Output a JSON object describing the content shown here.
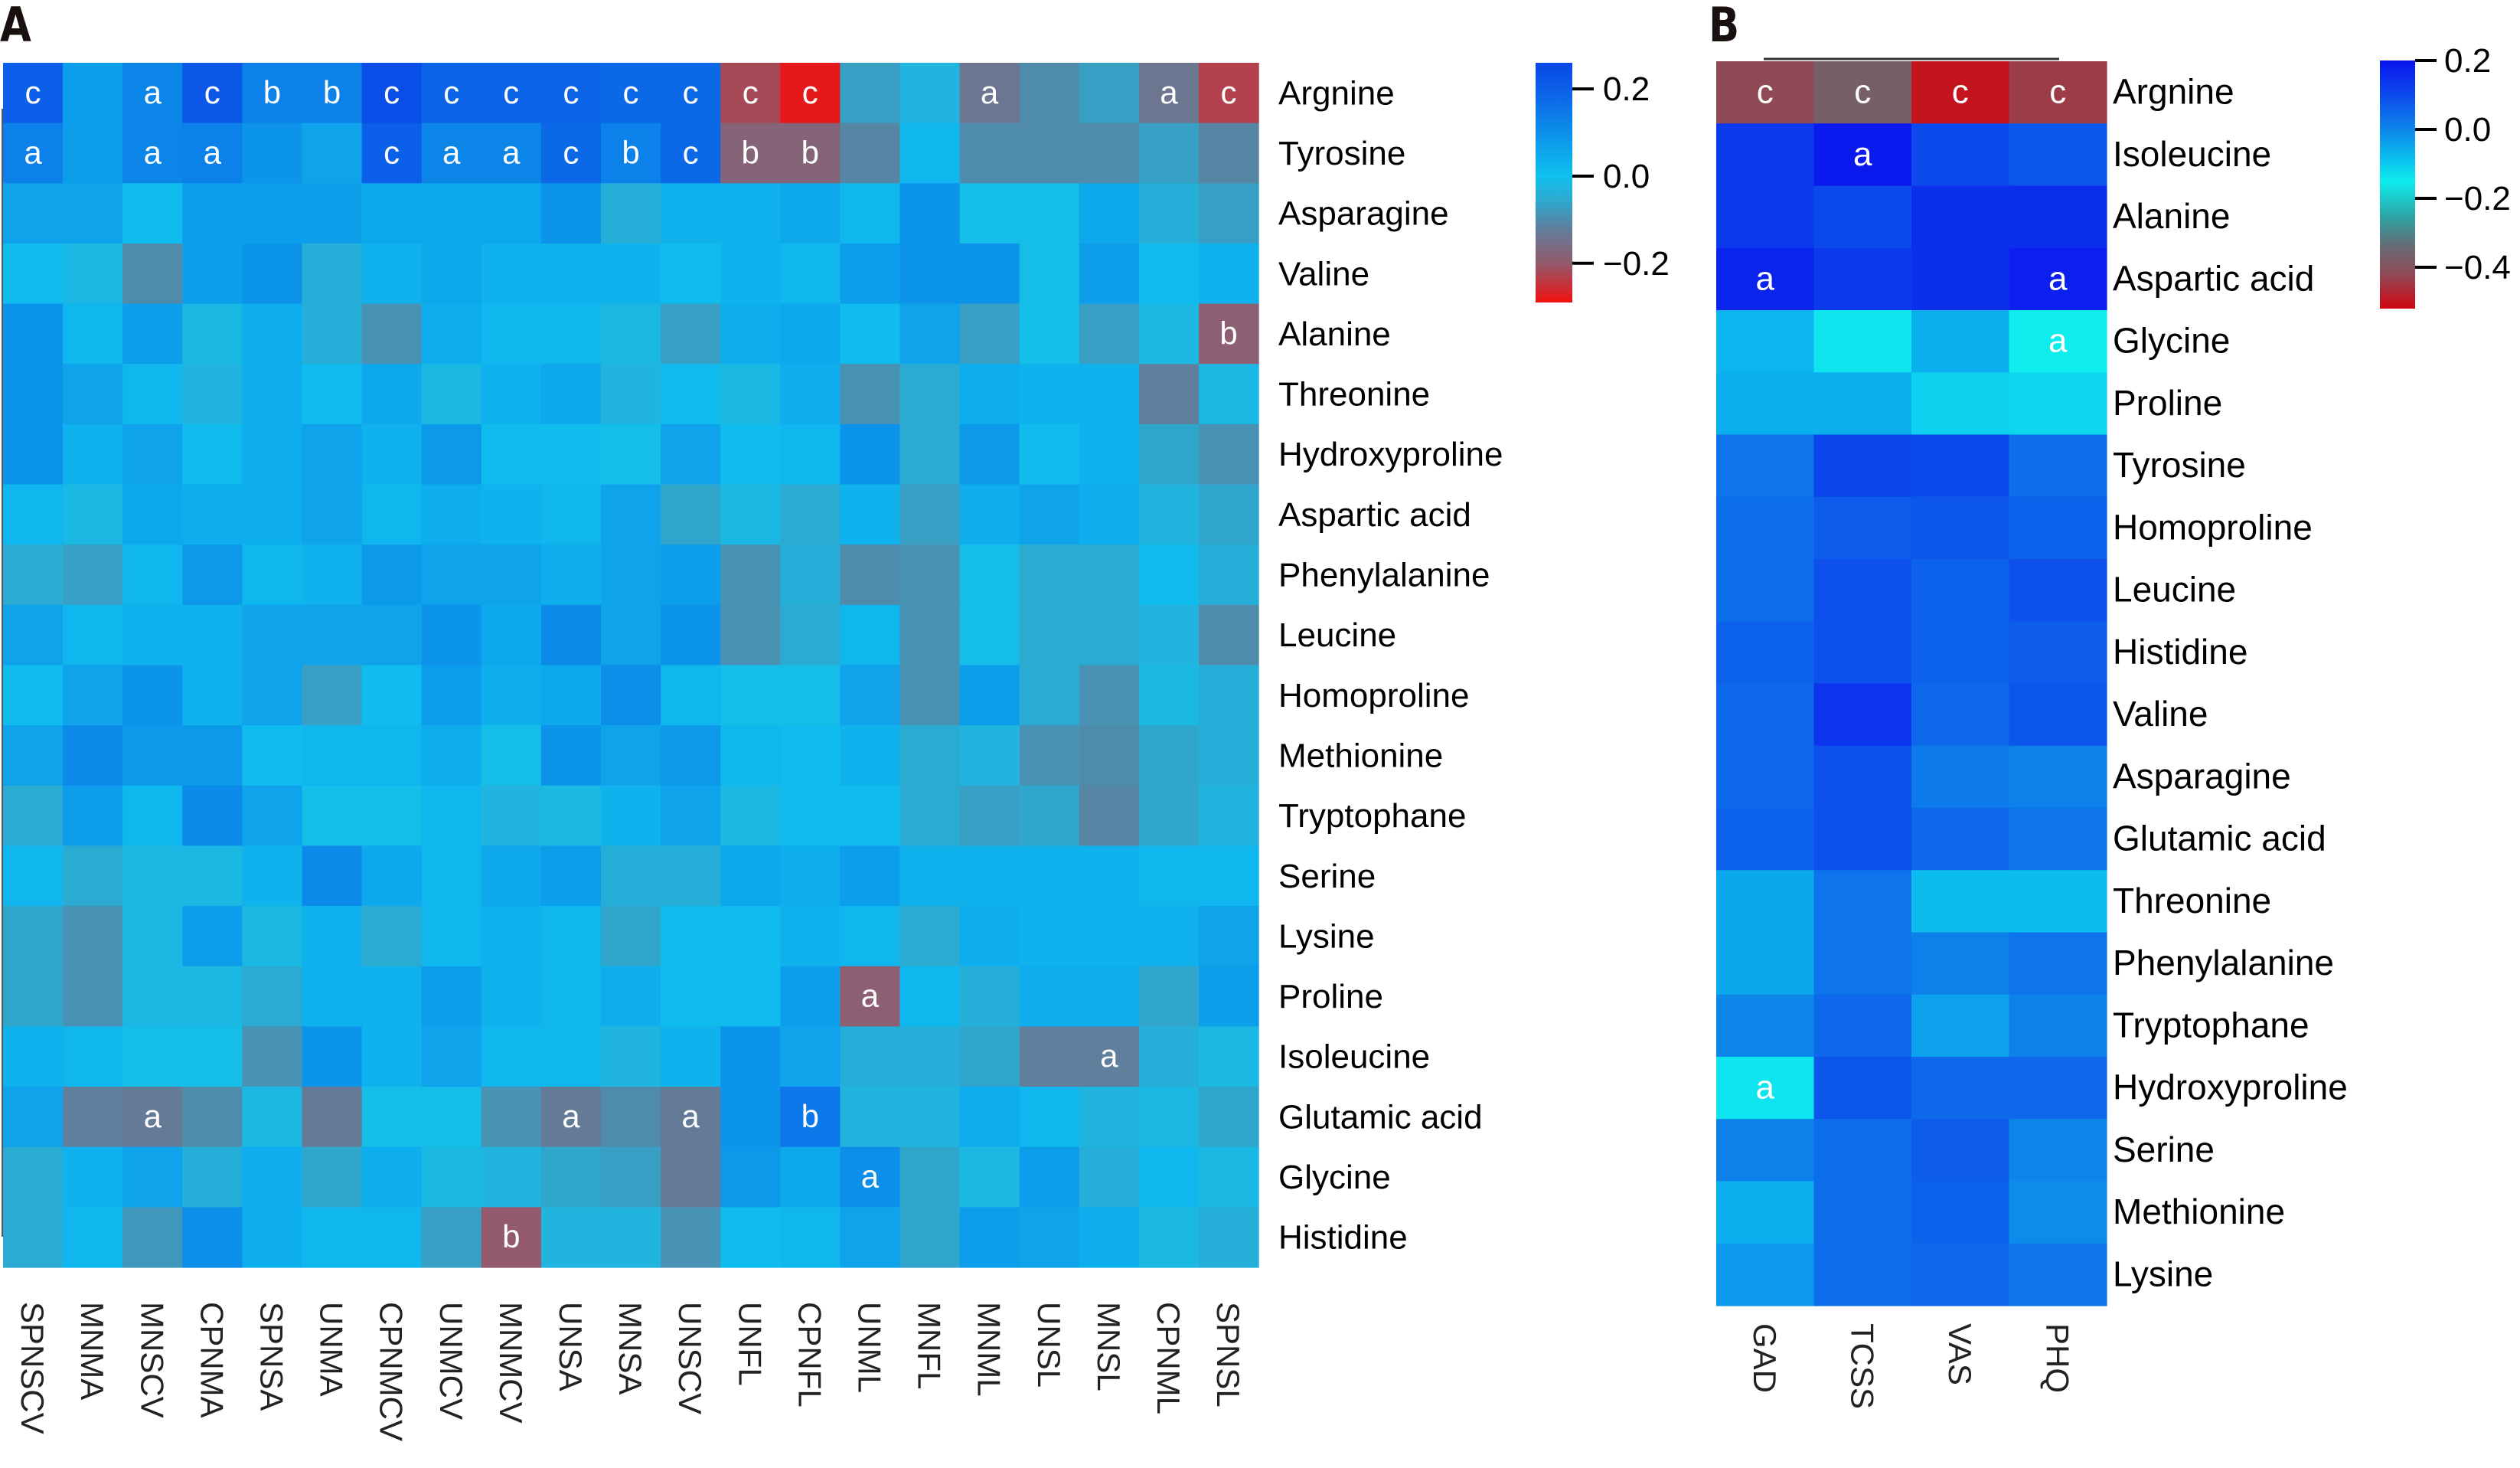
{
  "figure": {
    "panel_a_label": "A",
    "panel_b_label": "B"
  },
  "chart_data": [
    {
      "type": "heatmap",
      "panel": "A",
      "title": "",
      "xlabel": "",
      "ylabel": "",
      "columns": [
        "SPNSCV",
        "MNMA",
        "MNSCV",
        "CPNMA",
        "SPNSA",
        "UNMA",
        "CPNMCV",
        "UNMCV",
        "MNMCV",
        "UNSA",
        "MNSA",
        "UNSCV",
        "UNFL",
        "CPNFL",
        "UNML",
        "MNFL",
        "MNML",
        "UNSL",
        "MNSL",
        "CPNML",
        "SPNSL"
      ],
      "rows": [
        "Argnine",
        "Tyrosine",
        "Asparagine",
        "Valine",
        "Alanine",
        "Threonine",
        "Hydroxyproline",
        "Aspartic acid",
        "Phenylalanine",
        "Leucine",
        "Homoproline",
        "Methionine",
        "Tryptophane",
        "Serine",
        "Lysine",
        "Proline",
        "Isoleucine",
        "Glutamic acid",
        "Glycine",
        "Histidine"
      ],
      "values": [
        [
          0.2,
          0.07,
          0.12,
          0.22,
          0.13,
          0.13,
          0.24,
          0.19,
          0.19,
          0.19,
          0.18,
          0.18,
          -0.22,
          -0.28,
          -0.07,
          -0.03,
          -0.14,
          -0.1,
          -0.07,
          -0.14,
          -0.23
        ],
        [
          0.13,
          0.07,
          0.12,
          0.13,
          0.09,
          0.06,
          0.2,
          0.12,
          0.12,
          0.18,
          0.13,
          0.18,
          -0.18,
          -0.18,
          -0.11,
          0.02,
          -0.1,
          -0.1,
          -0.1,
          -0.07,
          -0.11
        ],
        [
          0.06,
          0.06,
          0.01,
          0.07,
          0.07,
          0.07,
          0.05,
          0.05,
          0.05,
          0.09,
          -0.04,
          0.03,
          0.03,
          0.05,
          0.02,
          0.09,
          -0.01,
          -0.01,
          0.05,
          -0.04,
          -0.07
        ],
        [
          0.01,
          -0.02,
          -0.1,
          0.07,
          0.09,
          -0.04,
          0.03,
          0.05,
          0.03,
          0.03,
          0.03,
          0.01,
          0.03,
          0.02,
          0.07,
          0.09,
          0.09,
          -0.01,
          0.07,
          0.01,
          0.03
        ],
        [
          0.09,
          0.02,
          0.07,
          -0.02,
          0.04,
          -0.04,
          -0.09,
          0.04,
          0.02,
          0.02,
          -0.02,
          -0.07,
          0.04,
          0.05,
          0.01,
          0.06,
          -0.07,
          -0.01,
          -0.07,
          -0.02,
          -0.19
        ],
        [
          0.09,
          0.06,
          0.02,
          -0.03,
          0.04,
          0.01,
          0.05,
          -0.02,
          0.03,
          0.05,
          -0.03,
          0.01,
          -0.02,
          0.04,
          -0.09,
          -0.05,
          0.04,
          0.03,
          0.03,
          -0.12,
          -0.02
        ],
        [
          0.09,
          0.03,
          0.06,
          0.01,
          0.04,
          0.06,
          0.03,
          0.08,
          0.01,
          0.01,
          -0.01,
          0.06,
          0.01,
          0.02,
          0.09,
          -0.05,
          0.08,
          0.01,
          0.03,
          -0.06,
          -0.09
        ],
        [
          0.02,
          -0.02,
          0.05,
          0.04,
          0.04,
          0.06,
          0.02,
          0.04,
          0.03,
          0.02,
          0.06,
          -0.06,
          -0.02,
          -0.05,
          0.03,
          -0.07,
          0.04,
          0.06,
          0.04,
          -0.03,
          -0.06
        ],
        [
          -0.05,
          -0.07,
          0.02,
          0.08,
          0.02,
          0.03,
          0.08,
          0.06,
          0.06,
          0.04,
          0.06,
          0.07,
          -0.09,
          -0.04,
          -0.1,
          -0.09,
          -0.01,
          -0.05,
          -0.05,
          0.01,
          -0.04
        ],
        [
          0.06,
          0.02,
          0.03,
          0.03,
          0.06,
          0.06,
          0.06,
          0.09,
          0.05,
          0.11,
          0.06,
          0.09,
          -0.09,
          -0.05,
          0.02,
          -0.09,
          -0.01,
          -0.05,
          -0.05,
          -0.03,
          -0.1
        ],
        [
          0.01,
          0.06,
          0.09,
          0.03,
          0.06,
          -0.07,
          0.01,
          0.07,
          0.04,
          0.05,
          0.1,
          0.02,
          -0.01,
          -0.01,
          0.06,
          -0.09,
          0.07,
          -0.05,
          -0.09,
          -0.02,
          -0.04
        ],
        [
          0.06,
          0.11,
          0.08,
          0.08,
          0.01,
          0.02,
          0.02,
          0.04,
          -0.01,
          0.09,
          0.06,
          0.08,
          0.02,
          0.01,
          0.03,
          -0.05,
          -0.03,
          -0.09,
          -0.1,
          -0.06,
          -0.04
        ],
        [
          -0.05,
          0.07,
          0.02,
          0.11,
          0.06,
          -0.01,
          -0.01,
          0.02,
          -0.03,
          -0.02,
          0.03,
          0.06,
          -0.02,
          0.01,
          0.01,
          -0.05,
          -0.07,
          -0.06,
          -0.11,
          -0.06,
          -0.03
        ],
        [
          0.02,
          -0.05,
          -0.02,
          -0.02,
          0.03,
          0.11,
          0.05,
          0.02,
          0.05,
          0.07,
          -0.04,
          -0.04,
          0.05,
          0.04,
          0.07,
          0.03,
          0.03,
          0.03,
          0.03,
          0.02,
          0.02
        ],
        [
          -0.06,
          -0.09,
          -0.02,
          0.07,
          -0.02,
          0.03,
          -0.05,
          0.02,
          0.03,
          0.02,
          -0.06,
          0.01,
          0.01,
          0.03,
          0.02,
          -0.05,
          0.04,
          0.03,
          0.03,
          0.03,
          0.06
        ],
        [
          -0.06,
          -0.09,
          -0.02,
          -0.02,
          -0.05,
          0.03,
          0.03,
          0.07,
          0.03,
          0.02,
          0.04,
          0.01,
          0.01,
          0.07,
          -0.19,
          0.02,
          -0.04,
          0.04,
          0.04,
          -0.06,
          0.07
        ],
        [
          0.03,
          0.02,
          -0.01,
          -0.01,
          -0.09,
          0.09,
          0.03,
          0.06,
          0.02,
          0.02,
          -0.03,
          0.03,
          0.09,
          0.06,
          -0.04,
          -0.04,
          -0.06,
          -0.12,
          -0.12,
          -0.04,
          -0.02
        ],
        [
          0.06,
          -0.12,
          -0.13,
          -0.1,
          -0.02,
          -0.13,
          -0.01,
          -0.01,
          -0.09,
          -0.13,
          -0.1,
          -0.13,
          0.09,
          0.15,
          -0.03,
          -0.03,
          0.04,
          0.02,
          -0.03,
          -0.02,
          -0.06
        ],
        [
          -0.05,
          0.03,
          0.06,
          -0.04,
          0.04,
          -0.06,
          0.04,
          -0.02,
          -0.03,
          -0.06,
          -0.07,
          -0.13,
          0.08,
          0.05,
          0.1,
          -0.06,
          -0.02,
          0.07,
          -0.04,
          0.02,
          -0.02
        ],
        [
          -0.05,
          0.02,
          -0.08,
          0.1,
          0.04,
          0.02,
          0.02,
          -0.07,
          -0.2,
          -0.03,
          -0.03,
          -0.09,
          0.01,
          0.02,
          0.06,
          -0.06,
          0.07,
          0.06,
          0.04,
          -0.02,
          -0.04
        ]
      ],
      "annotations": [
        {
          "row": "Argnine",
          "column": "SPNSCV",
          "text": "c"
        },
        {
          "row": "Argnine",
          "column": "MNSCV",
          "text": "a"
        },
        {
          "row": "Argnine",
          "column": "CPNMA",
          "text": "c"
        },
        {
          "row": "Argnine",
          "column": "SPNSA",
          "text": "b"
        },
        {
          "row": "Argnine",
          "column": "UNMA",
          "text": "b"
        },
        {
          "row": "Argnine",
          "column": "CPNMCV",
          "text": "c"
        },
        {
          "row": "Argnine",
          "column": "UNMCV",
          "text": "c"
        },
        {
          "row": "Argnine",
          "column": "MNMCV",
          "text": "c"
        },
        {
          "row": "Argnine",
          "column": "UNSA",
          "text": "c"
        },
        {
          "row": "Argnine",
          "column": "MNSA",
          "text": "c"
        },
        {
          "row": "Argnine",
          "column": "UNSCV",
          "text": "c"
        },
        {
          "row": "Argnine",
          "column": "UNFL",
          "text": "c"
        },
        {
          "row": "Argnine",
          "column": "CPNFL",
          "text": "c"
        },
        {
          "row": "Argnine",
          "column": "MNML",
          "text": "a"
        },
        {
          "row": "Argnine",
          "column": "CPNML",
          "text": "a"
        },
        {
          "row": "Argnine",
          "column": "SPNSL",
          "text": "c"
        },
        {
          "row": "Tyrosine",
          "column": "SPNSCV",
          "text": "a"
        },
        {
          "row": "Tyrosine",
          "column": "MNSCV",
          "text": "a"
        },
        {
          "row": "Tyrosine",
          "column": "CPNMA",
          "text": "a"
        },
        {
          "row": "Tyrosine",
          "column": "CPNMCV",
          "text": "c"
        },
        {
          "row": "Tyrosine",
          "column": "UNMCV",
          "text": "a"
        },
        {
          "row": "Tyrosine",
          "column": "MNMCV",
          "text": "a"
        },
        {
          "row": "Tyrosine",
          "column": "UNSA",
          "text": "c"
        },
        {
          "row": "Tyrosine",
          "column": "MNSA",
          "text": "b"
        },
        {
          "row": "Tyrosine",
          "column": "UNSCV",
          "text": "c"
        },
        {
          "row": "Tyrosine",
          "column": "UNFL",
          "text": "b"
        },
        {
          "row": "Tyrosine",
          "column": "CPNFL",
          "text": "b"
        },
        {
          "row": "Alanine",
          "column": "SPNSL",
          "text": "b"
        },
        {
          "row": "Proline",
          "column": "UNML",
          "text": "a"
        },
        {
          "row": "Isoleucine",
          "column": "MNSL",
          "text": "a"
        },
        {
          "row": "Glutamic acid",
          "column": "MNSCV",
          "text": "a"
        },
        {
          "row": "Glutamic acid",
          "column": "UNSA",
          "text": "a"
        },
        {
          "row": "Glutamic acid",
          "column": "UNSCV",
          "text": "a"
        },
        {
          "row": "Glutamic acid",
          "column": "CPNFL",
          "text": "b"
        },
        {
          "row": "Glycine",
          "column": "UNML",
          "text": "a"
        },
        {
          "row": "Histidine",
          "column": "MNMCV",
          "text": "b"
        }
      ],
      "colorbar": {
        "range": [
          -0.29,
          0.26
        ],
        "ticks": [
          0.2,
          0.0,
          -0.2
        ],
        "tick_labels": [
          "0.2",
          "0.0",
          "−0.2"
        ],
        "stops": [
          {
            "value": 0.26,
            "color": "#0a46e6"
          },
          {
            "value": 0.2,
            "color": "#0b5fe8"
          },
          {
            "value": 0.1,
            "color": "#0c8fe9"
          },
          {
            "value": 0.0,
            "color": "#10c1ef"
          },
          {
            "value": -0.06,
            "color": "#30a6cc"
          },
          {
            "value": -0.12,
            "color": "#5f7f9c"
          },
          {
            "value": -0.2,
            "color": "#925a6c"
          },
          {
            "value": -0.29,
            "color": "#f21010"
          }
        ],
        "legend_position": "right"
      }
    },
    {
      "type": "heatmap",
      "panel": "B",
      "title": "",
      "xlabel": "",
      "ylabel": "",
      "columns": [
        "GAD",
        "TCSS",
        "VAS",
        "PHQ"
      ],
      "rows": [
        "Argnine",
        "Isoleucine",
        "Alanine",
        "Aspartic acid",
        "Glycine",
        "Proline",
        "Tyrosine",
        "Homoproline",
        "Leucine",
        "Histidine",
        "Valine",
        "Asparagine",
        "Glutamic acid",
        "Threonine",
        "Phenylalanine",
        "Tryptophane",
        "Hydroxyproline",
        "Serine",
        "Methionine",
        "Lysine"
      ],
      "values": [
        [
          -0.42,
          -0.37,
          -0.5,
          -0.44
        ],
        [
          0.13,
          0.19,
          0.1,
          0.08
        ],
        [
          0.13,
          0.1,
          0.15,
          0.15
        ],
        [
          0.17,
          0.13,
          0.15,
          0.18
        ],
        [
          -0.07,
          -0.14,
          -0.06,
          -0.15
        ],
        [
          -0.06,
          -0.06,
          -0.11,
          -0.12
        ],
        [
          0.03,
          0.11,
          0.1,
          0.04
        ],
        [
          0.04,
          0.07,
          0.08,
          0.06
        ],
        [
          0.04,
          0.09,
          0.06,
          0.09
        ],
        [
          0.06,
          0.09,
          0.06,
          0.07
        ],
        [
          0.05,
          0.14,
          0.05,
          0.08
        ],
        [
          0.05,
          0.09,
          0.02,
          0.01
        ],
        [
          0.06,
          0.09,
          0.05,
          0.03
        ],
        [
          -0.05,
          0.03,
          -0.08,
          -0.08
        ],
        [
          -0.05,
          0.03,
          0.01,
          0.03
        ],
        [
          0.0,
          0.05,
          -0.04,
          0.01
        ],
        [
          -0.14,
          0.08,
          0.05,
          0.05
        ],
        [
          0.01,
          0.04,
          0.07,
          0.0
        ],
        [
          -0.06,
          0.04,
          0.06,
          -0.01
        ],
        [
          -0.03,
          0.04,
          0.05,
          0.03
        ]
      ],
      "annotations": [
        {
          "row": "Argnine",
          "column": "GAD",
          "text": "c"
        },
        {
          "row": "Argnine",
          "column": "TCSS",
          "text": "c"
        },
        {
          "row": "Argnine",
          "column": "VAS",
          "text": "c"
        },
        {
          "row": "Argnine",
          "column": "PHQ",
          "text": "c"
        },
        {
          "row": "Isoleucine",
          "column": "TCSS",
          "text": "a"
        },
        {
          "row": "Aspartic acid",
          "column": "GAD",
          "text": "a"
        },
        {
          "row": "Aspartic acid",
          "column": "PHQ",
          "text": "a"
        },
        {
          "row": "Glycine",
          "column": "PHQ",
          "text": "a"
        },
        {
          "row": "Hydroxyproline",
          "column": "GAD",
          "text": "a"
        }
      ],
      "colorbar": {
        "range": [
          -0.52,
          0.2
        ],
        "ticks": [
          0.2,
          0.0,
          -0.2,
          -0.4
        ],
        "tick_labels": [
          "0.2",
          "0.0",
          "−0.2",
          "−0.4"
        ],
        "stops": [
          {
            "value": 0.2,
            "color": "#0a14ee"
          },
          {
            "value": 0.1,
            "color": "#0d4aec"
          },
          {
            "value": 0.0,
            "color": "#0d86ea"
          },
          {
            "value": -0.08,
            "color": "#0cbcef"
          },
          {
            "value": -0.15,
            "color": "#0eecee"
          },
          {
            "value": -0.25,
            "color": "#2aa6a6"
          },
          {
            "value": -0.34,
            "color": "#676b74"
          },
          {
            "value": -0.42,
            "color": "#8f4a55"
          },
          {
            "value": -0.52,
            "color": "#d00611"
          }
        ],
        "legend_position": "right"
      }
    }
  ]
}
